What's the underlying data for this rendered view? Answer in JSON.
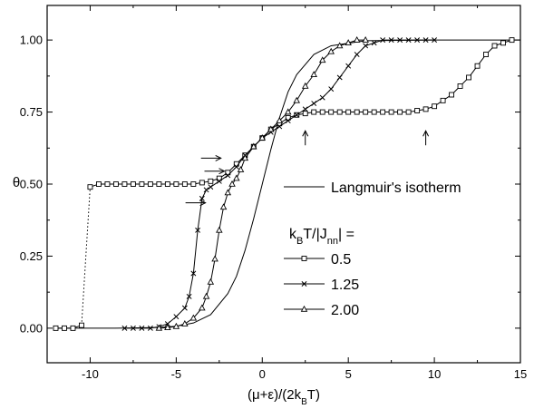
{
  "chart_data": {
    "type": "line",
    "xlabel": "(μ+ε)/(2k_BT)",
    "ylabel": "θ",
    "xlim": [
      -12.5,
      15
    ],
    "ylim": [
      -0.12,
      1.12
    ],
    "xticks": [
      -10,
      -5,
      0,
      5,
      10,
      15
    ],
    "yticks": [
      "0.00",
      "0.25",
      "0.50",
      "0.75",
      "1.00"
    ],
    "legend_title": "k_BT/|J_nn| =",
    "legend_position": "right",
    "series": [
      {
        "name": "Langmuir's isotherm",
        "marker": "none",
        "x": [
          -12,
          -8,
          -6,
          -5,
          -4,
          -3,
          -2,
          -1.5,
          -1,
          -0.5,
          0,
          0.5,
          1,
          1.5,
          2,
          3,
          4,
          6,
          10,
          15
        ],
        "y": [
          0,
          0.0002,
          0.0025,
          0.0067,
          0.018,
          0.047,
          0.12,
          0.18,
          0.27,
          0.38,
          0.5,
          0.62,
          0.73,
          0.82,
          0.88,
          0.95,
          0.98,
          0.9975,
          1,
          1
        ]
      },
      {
        "name": "0.5",
        "marker": "square",
        "x": [
          -12,
          -11.5,
          -11,
          -10.5,
          -10,
          -9.5,
          -9,
          -8.5,
          -8,
          -7.5,
          -7,
          -6.5,
          -6,
          -5.5,
          -5,
          -4.5,
          -4,
          -3.5,
          -3,
          -2.5,
          -2,
          -1.5,
          -1,
          -0.5,
          0,
          0.5,
          1,
          1.5,
          2,
          2.5,
          3,
          3.5,
          4,
          4.5,
          5,
          5.5,
          6,
          6.5,
          7,
          7.5,
          8,
          8.5,
          9,
          9.5,
          10,
          10.5,
          11,
          11.5,
          12,
          12.5,
          13,
          13.5,
          14,
          14.5
        ],
        "y": [
          0,
          0,
          0,
          0.01,
          0.49,
          0.5,
          0.5,
          0.5,
          0.5,
          0.5,
          0.5,
          0.5,
          0.5,
          0.5,
          0.5,
          0.5,
          0.5,
          0.505,
          0.51,
          0.52,
          0.54,
          0.57,
          0.6,
          0.63,
          0.66,
          0.69,
          0.71,
          0.73,
          0.74,
          0.745,
          0.75,
          0.75,
          0.75,
          0.75,
          0.75,
          0.75,
          0.75,
          0.75,
          0.75,
          0.75,
          0.75,
          0.75,
          0.755,
          0.76,
          0.77,
          0.79,
          0.81,
          0.84,
          0.87,
          0.91,
          0.95,
          0.98,
          0.99,
          1.0
        ],
        "dotted_segment": [
          -10.5,
          -10
        ]
      },
      {
        "name": "1.25",
        "marker": "x",
        "x": [
          -8,
          -7.5,
          -7,
          -6.5,
          -6,
          -5.5,
          -5,
          -4.5,
          -4.25,
          -4,
          -3.75,
          -3.5,
          -3.25,
          -3,
          -2.5,
          -2,
          -1.5,
          -1,
          -0.5,
          0,
          0.5,
          1,
          1.5,
          2,
          2.5,
          3,
          3.5,
          4,
          4.5,
          5,
          5.5,
          6,
          6.5,
          7,
          7.5,
          8,
          8.5,
          9,
          9.5,
          10
        ],
        "y": [
          0,
          0,
          0,
          0,
          0.005,
          0.015,
          0.04,
          0.07,
          0.11,
          0.19,
          0.34,
          0.45,
          0.48,
          0.49,
          0.51,
          0.53,
          0.56,
          0.6,
          0.63,
          0.66,
          0.68,
          0.7,
          0.72,
          0.74,
          0.76,
          0.78,
          0.8,
          0.83,
          0.87,
          0.91,
          0.95,
          0.98,
          0.99,
          1.0,
          1.0,
          1.0,
          1.0,
          1.0,
          1.0,
          1.0
        ]
      },
      {
        "name": "2.00",
        "marker": "triangle",
        "x": [
          -6,
          -5.5,
          -5,
          -4.5,
          -4,
          -3.5,
          -3.25,
          -3,
          -2.75,
          -2.5,
          -2.25,
          -2,
          -1.75,
          -1.5,
          -1.25,
          -1,
          -0.5,
          0,
          0.5,
          1,
          1.5,
          2,
          2.5,
          3,
          3.5,
          4,
          4.5,
          5,
          5.5,
          6
        ],
        "y": [
          0,
          0.002,
          0.006,
          0.015,
          0.035,
          0.07,
          0.11,
          0.16,
          0.24,
          0.34,
          0.42,
          0.47,
          0.5,
          0.52,
          0.55,
          0.59,
          0.63,
          0.66,
          0.69,
          0.72,
          0.75,
          0.79,
          0.84,
          0.88,
          0.93,
          0.96,
          0.98,
          0.99,
          1.0,
          1.0
        ]
      }
    ],
    "annotations": [
      {
        "type": "arrow-right",
        "x": -2.4,
        "y": 0.59
      },
      {
        "type": "arrow-right",
        "x": -2.2,
        "y": 0.545
      },
      {
        "type": "arrow-right",
        "x": -3.3,
        "y": 0.435
      },
      {
        "type": "arrow-up",
        "x": 2.5,
        "y": 0.685
      },
      {
        "type": "arrow-up",
        "x": 9.5,
        "y": 0.685
      }
    ]
  }
}
